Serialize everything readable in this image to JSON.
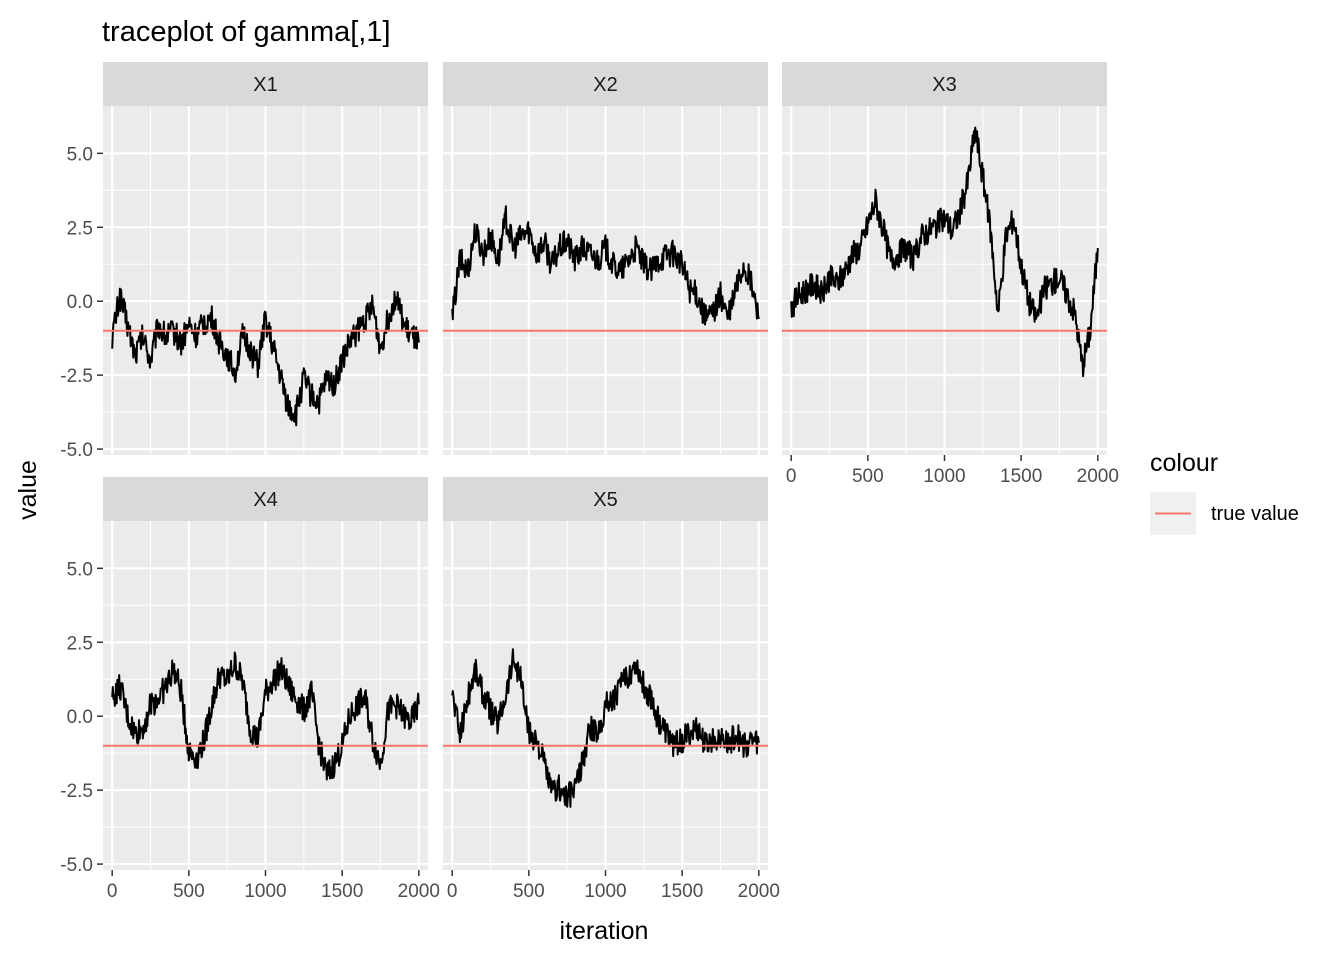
{
  "chart_data": {
    "type": "line",
    "title": "traceplot of gamma[,1]",
    "xlabel": "iteration",
    "ylabel": "value",
    "xlim": [
      -60,
      2060
    ],
    "ylim": [
      -5.2,
      6.6
    ],
    "x_ticks": [
      0,
      500,
      1000,
      1500,
      2000
    ],
    "x_tick_labels": [
      "0",
      "500",
      "1000",
      "1500",
      "2000"
    ],
    "y_ticks": [
      -5.0,
      -2.5,
      0.0,
      2.5,
      5.0
    ],
    "y_tick_labels": [
      "-5.0",
      "-2.5",
      "0.0",
      "2.5",
      "5.0"
    ],
    "grid": true,
    "true_value": -1.0,
    "reference_line_color": "#F8766D",
    "trace_color": "#000000",
    "legend": {
      "title": "colour",
      "entries": [
        {
          "label": "true value",
          "color": "#F8766D"
        }
      ],
      "position": "right"
    },
    "panels": [
      {
        "label": "X1",
        "series": [
          {
            "name": "trace",
            "x": [
              0,
              50,
              100,
              150,
              200,
              250,
              300,
              350,
              400,
              450,
              500,
              550,
              600,
              650,
              700,
              750,
              800,
              850,
              900,
              950,
              1000,
              1050,
              1100,
              1150,
              1200,
              1250,
              1300,
              1350,
              1400,
              1450,
              1500,
              1550,
              1600,
              1650,
              1700,
              1750,
              1800,
              1850,
              1900,
              1950,
              2000
            ],
            "y": [
              -1.2,
              0.2,
              -0.8,
              -1.8,
              -1.2,
              -2.0,
              -0.8,
              -1.2,
              -1.0,
              -1.4,
              -0.8,
              -1.2,
              -0.7,
              -0.6,
              -1.4,
              -1.8,
              -2.4,
              -1.2,
              -1.6,
              -2.2,
              -0.6,
              -1.6,
              -2.6,
              -3.6,
              -3.8,
              -2.6,
              -3.2,
              -3.4,
              -2.6,
              -2.8,
              -2.0,
              -1.4,
              -1.0,
              -0.6,
              -0.2,
              -1.6,
              -0.6,
              0.2,
              -0.8,
              -1.2,
              -1.4
            ]
          }
        ]
      },
      {
        "label": "X2",
        "series": [
          {
            "name": "trace",
            "x": [
              0,
              50,
              100,
              150,
              200,
              250,
              300,
              350,
              400,
              450,
              500,
              550,
              600,
              650,
              700,
              750,
              800,
              850,
              900,
              950,
              1000,
              1050,
              1100,
              1150,
              1200,
              1250,
              1300,
              1350,
              1400,
              1450,
              1500,
              1550,
              1600,
              1650,
              1700,
              1750,
              1800,
              1850,
              1900,
              1950,
              2000
            ],
            "y": [
              -0.6,
              1.4,
              1.0,
              2.4,
              1.6,
              2.2,
              1.4,
              2.8,
              1.8,
              2.2,
              2.4,
              1.6,
              2.0,
              1.2,
              1.8,
              2.0,
              1.4,
              1.8,
              1.6,
              1.4,
              1.8,
              1.2,
              1.0,
              1.4,
              1.8,
              1.2,
              1.0,
              1.4,
              1.6,
              1.6,
              1.2,
              0.4,
              0.2,
              -0.6,
              -0.4,
              0.2,
              -0.6,
              0.4,
              1.2,
              0.6,
              -0.6
            ]
          }
        ]
      },
      {
        "label": "X3",
        "series": [
          {
            "name": "trace",
            "x": [
              0,
              50,
              100,
              150,
              200,
              250,
              300,
              350,
              400,
              450,
              500,
              550,
              600,
              650,
              700,
              750,
              800,
              850,
              900,
              950,
              1000,
              1050,
              1100,
              1150,
              1200,
              1250,
              1300,
              1350,
              1400,
              1450,
              1500,
              1550,
              1600,
              1650,
              1700,
              1750,
              1800,
              1850,
              1900,
              1950,
              2000
            ],
            "y": [
              -0.2,
              0.2,
              0.4,
              0.6,
              0.2,
              0.8,
              0.6,
              1.0,
              1.6,
              1.8,
              2.6,
              3.4,
              2.4,
              1.4,
              1.6,
              1.8,
              1.4,
              2.2,
              2.4,
              2.6,
              2.8,
              2.4,
              3.0,
              4.0,
              5.8,
              4.2,
              2.4,
              -0.4,
              2.2,
              2.8,
              1.2,
              0.0,
              -0.6,
              0.4,
              0.6,
              0.8,
              0.2,
              -0.4,
              -2.2,
              -1.0,
              1.8
            ]
          }
        ]
      },
      {
        "label": "X4",
        "series": [
          {
            "name": "trace",
            "x": [
              0,
              50,
              100,
              150,
              200,
              250,
              300,
              350,
              400,
              450,
              500,
              550,
              600,
              650,
              700,
              750,
              800,
              850,
              900,
              950,
              1000,
              1050,
              1100,
              1150,
              1200,
              1250,
              1300,
              1350,
              1400,
              1450,
              1500,
              1550,
              1600,
              1650,
              1700,
              1750,
              1800,
              1850,
              1900,
              1950,
              2000
            ],
            "y": [
              0.6,
              1.0,
              0.0,
              -0.6,
              -0.4,
              0.4,
              0.6,
              1.0,
              1.6,
              0.8,
              -1.2,
              -1.4,
              -0.8,
              0.4,
              1.4,
              1.2,
              1.8,
              1.2,
              -0.4,
              -0.8,
              0.8,
              1.2,
              1.6,
              1.0,
              0.6,
              0.2,
              0.8,
              -1.0,
              -2.0,
              -1.6,
              -1.0,
              0.0,
              0.4,
              0.6,
              -0.8,
              -1.6,
              0.2,
              0.4,
              0.0,
              -0.2,
              0.4
            ]
          }
        ]
      },
      {
        "label": "X5",
        "series": [
          {
            "name": "trace",
            "x": [
              0,
              50,
              100,
              150,
              200,
              250,
              300,
              350,
              400,
              450,
              500,
              550,
              600,
              650,
              700,
              750,
              800,
              850,
              900,
              950,
              1000,
              1050,
              1100,
              1150,
              1200,
              1250,
              1300,
              1350,
              1400,
              1450,
              1500,
              1550,
              1600,
              1650,
              1700,
              1750,
              1800,
              1850,
              1900,
              1950,
              2000
            ],
            "y": [
              0.8,
              -0.6,
              0.6,
              1.6,
              0.8,
              0.2,
              -0.2,
              0.8,
              2.0,
              1.2,
              -0.6,
              -0.8,
              -1.6,
              -2.6,
              -2.4,
              -2.8,
              -2.4,
              -1.6,
              -0.4,
              -0.6,
              0.4,
              0.6,
              1.0,
              1.4,
              1.8,
              1.0,
              0.6,
              -0.2,
              -0.6,
              -1.0,
              -0.8,
              -0.6,
              -0.4,
              -1.0,
              -0.8,
              -0.6,
              -1.0,
              -0.6,
              -1.0,
              -0.8,
              -0.9
            ]
          }
        ]
      }
    ]
  }
}
